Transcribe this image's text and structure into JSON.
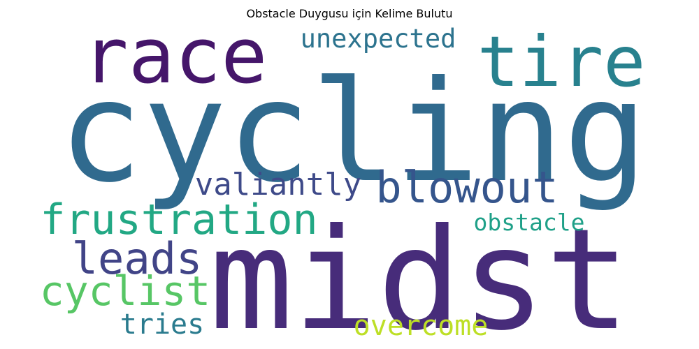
{
  "chart_data": {
    "type": "wordcloud",
    "title": "Obstacle Duygusu için Kelime Bulutu",
    "background": "#ffffff",
    "colormap": "viridis",
    "words": [
      {
        "text": "cycling",
        "weight": 1.0,
        "color": "#306a8e"
      },
      {
        "text": "midst",
        "weight": 0.84,
        "color": "#472c7a"
      },
      {
        "text": "race",
        "weight": 0.6,
        "color": "#45166a"
      },
      {
        "text": "tire",
        "weight": 0.5,
        "color": "#28818e"
      },
      {
        "text": "blowout",
        "weight": 0.3,
        "color": "#35558c"
      },
      {
        "text": "frustration",
        "weight": 0.3,
        "color": "#22a884"
      },
      {
        "text": "leads",
        "weight": 0.3,
        "color": "#414487"
      },
      {
        "text": "cyclist",
        "weight": 0.3,
        "color": "#57c665"
      },
      {
        "text": "valiantly",
        "weight": 0.25,
        "color": "#3e4a89"
      },
      {
        "text": "unexpected",
        "weight": 0.22,
        "color": "#2c738e"
      },
      {
        "text": "tries",
        "weight": 0.22,
        "color": "#2a7b8e"
      },
      {
        "text": "obstacle",
        "weight": 0.2,
        "color": "#1fa088"
      },
      {
        "text": "overcome",
        "weight": 0.2,
        "color": "#bddf26"
      }
    ]
  }
}
